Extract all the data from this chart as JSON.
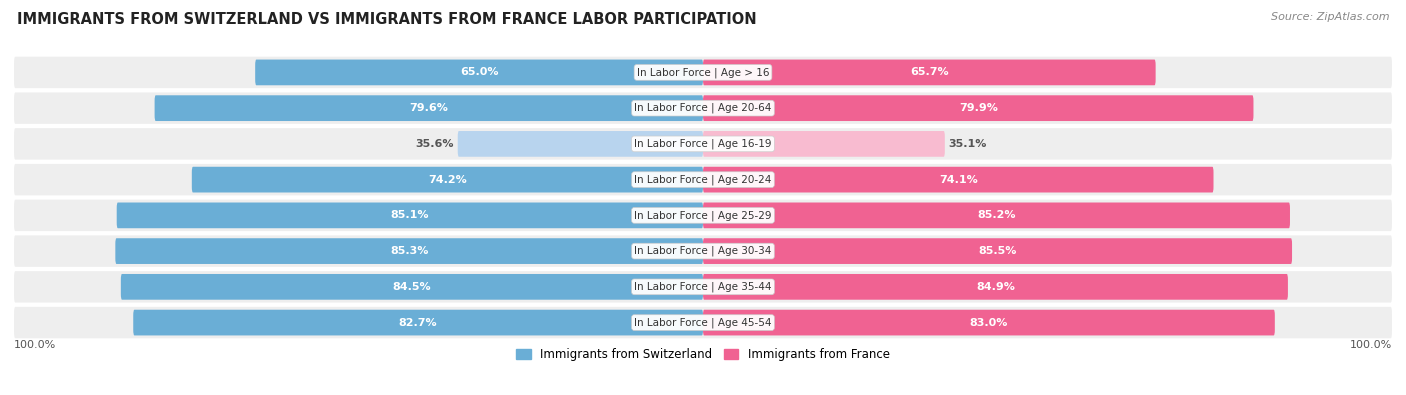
{
  "title": "IMMIGRANTS FROM SWITZERLAND VS IMMIGRANTS FROM FRANCE LABOR PARTICIPATION",
  "source": "Source: ZipAtlas.com",
  "categories": [
    "In Labor Force | Age > 16",
    "In Labor Force | Age 20-64",
    "In Labor Force | Age 16-19",
    "In Labor Force | Age 20-24",
    "In Labor Force | Age 25-29",
    "In Labor Force | Age 30-34",
    "In Labor Force | Age 35-44",
    "In Labor Force | Age 45-54"
  ],
  "switzerland_values": [
    65.0,
    79.6,
    35.6,
    74.2,
    85.1,
    85.3,
    84.5,
    82.7
  ],
  "france_values": [
    65.7,
    79.9,
    35.1,
    74.1,
    85.2,
    85.5,
    84.9,
    83.0
  ],
  "switzerland_color": "#6aaed6",
  "france_color": "#f06292",
  "switzerland_light_color": "#b8d4ee",
  "france_light_color": "#f8bbd0",
  "row_bg_color": "#eeeeee",
  "row_bg_outer": "#e0e0e0",
  "label_white": "#ffffff",
  "label_dark": "#555555",
  "max_value": 100.0,
  "legend_switzerland": "Immigrants from Switzerland",
  "legend_france": "Immigrants from France",
  "title_fontsize": 10.5,
  "source_fontsize": 8,
  "bar_label_fontsize": 8,
  "category_fontsize": 7.5,
  "legend_fontsize": 8.5,
  "bottom_label": "100.0%",
  "category_threshold": 50
}
